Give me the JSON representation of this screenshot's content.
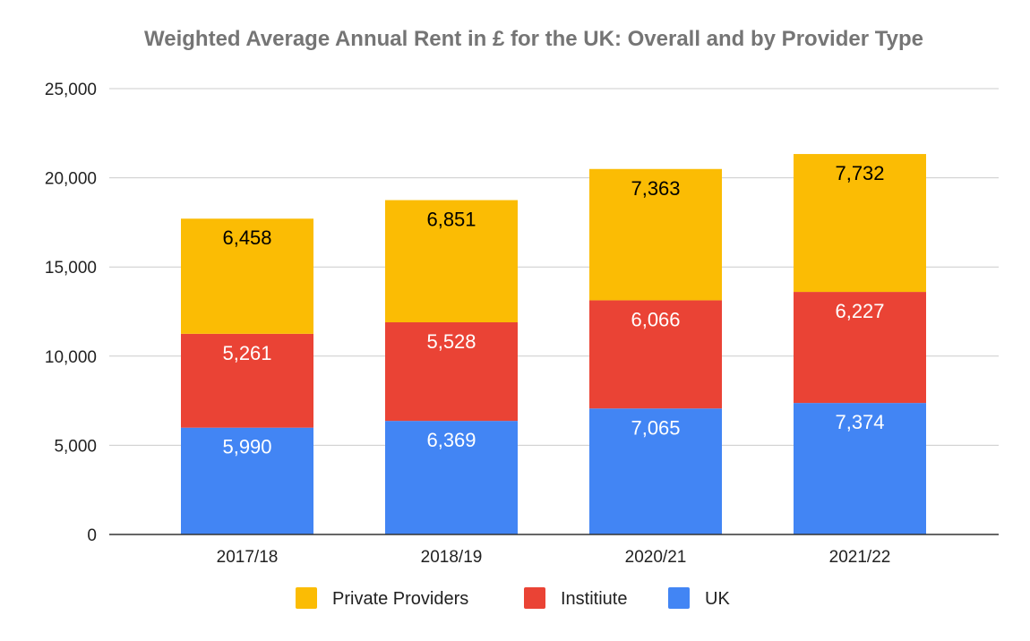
{
  "chart_data": {
    "type": "bar",
    "stacked": true,
    "title": "Weighted Average Annual Rent in £ for the UK: Overall and by Provider Type",
    "xlabel": "",
    "ylabel": "",
    "ylim": [
      0,
      25000
    ],
    "yticks": [
      0,
      5000,
      10000,
      15000,
      20000,
      25000
    ],
    "ytick_labels": [
      "0",
      "5,000",
      "10,000",
      "15,000",
      "20,000",
      "25,000"
    ],
    "grid": true,
    "legend": "bottom",
    "categories": [
      "2017/18",
      "2018/19",
      "2020/21",
      "2021/22"
    ],
    "series": [
      {
        "name": "UK",
        "color": "#4285f4",
        "label_color": "#ffffff",
        "values": [
          5990,
          6369,
          7065,
          7374
        ],
        "labels": [
          "5,990",
          "6,369",
          "7,065",
          "7,374"
        ]
      },
      {
        "name": "Institiute",
        "color": "#ea4335",
        "label_color": "#ffffff",
        "values": [
          5261,
          5528,
          6066,
          6227
        ],
        "labels": [
          "5,261",
          "5,528",
          "6,066",
          "6,227"
        ]
      },
      {
        "name": "Private Providers",
        "color": "#fbbc04",
        "label_color": "#000000",
        "values": [
          6458,
          6851,
          7363,
          7732
        ],
        "labels": [
          "6,458",
          "6,851",
          "7,363",
          "7,732"
        ]
      }
    ],
    "legend_order": [
      "Private Providers",
      "Institiute",
      "UK"
    ]
  }
}
